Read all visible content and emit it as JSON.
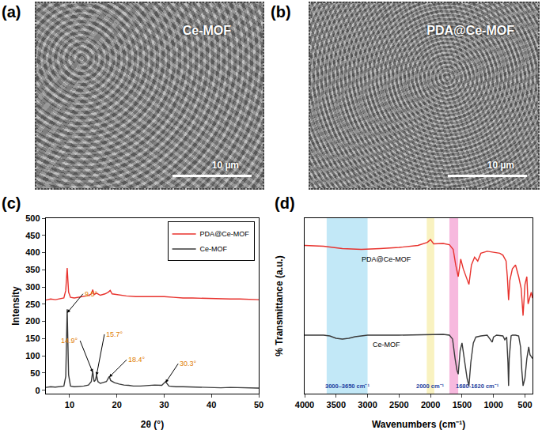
{
  "images": [
    {
      "panel_label": "(a)",
      "label": "Ce-MOF",
      "scale_bar": "10 µm"
    },
    {
      "panel_label": "(b)",
      "label": "PDA@Ce-MOF",
      "scale_bar": "10 µm"
    }
  ],
  "chart_data": [
    {
      "type": "line",
      "panel_label": "(c)",
      "x_label": "2θ (°)",
      "y_label": "Intensity",
      "xlim": [
        5,
        50
      ],
      "xticks": [
        10,
        20,
        30,
        40,
        50
      ],
      "ylim": [
        -10,
        500
      ],
      "yticks": [
        0,
        50,
        100,
        150,
        200,
        250,
        300,
        350,
        400,
        450,
        500
      ],
      "grid": false,
      "legend": "upper right",
      "series": [
        {
          "name": "PDA@Ce-MOF",
          "color": "#e8322d",
          "x": [
            5,
            6,
            7,
            8,
            8.8,
            9.2,
            9.5,
            9.8,
            10.2,
            11,
            12,
            13,
            14,
            14.6,
            14.9,
            15.2,
            15.7,
            16.5,
            17.5,
            18.2,
            18.6,
            19,
            20,
            21,
            22,
            24,
            26,
            28,
            30,
            32,
            34,
            36,
            38,
            40,
            42,
            44,
            46,
            48,
            50
          ],
          "values": [
            262,
            265,
            263,
            266,
            268,
            290,
            355,
            285,
            270,
            268,
            270,
            272,
            275,
            280,
            292,
            278,
            282,
            276,
            280,
            285,
            290,
            280,
            278,
            276,
            274,
            272,
            272,
            271,
            272,
            270,
            268,
            268,
            267,
            266,
            266,
            265,
            265,
            264,
            263
          ]
        },
        {
          "name": "Ce-MOF",
          "color": "#3a3a3a",
          "x": [
            5,
            6,
            7,
            8,
            8.8,
            9.2,
            9.5,
            9.8,
            10.2,
            11,
            12,
            13,
            14,
            14.6,
            14.9,
            15.2,
            15.5,
            15.7,
            16.0,
            16.5,
            17,
            17.8,
            18.2,
            18.4,
            18.7,
            19.5,
            20.5,
            21.5,
            22.5,
            23.5,
            25,
            26.5,
            28,
            29.5,
            30.3,
            31,
            32.5,
            34,
            36,
            38,
            40,
            42,
            44,
            46,
            48,
            50
          ],
          "values": [
            8,
            10,
            9,
            10,
            12,
            40,
            235,
            45,
            12,
            10,
            11,
            12,
            15,
            25,
            55,
            25,
            30,
            45,
            25,
            20,
            22,
            25,
            35,
            40,
            28,
            22,
            18,
            15,
            14,
            12,
            12,
            14,
            15,
            14,
            25,
            12,
            10,
            10,
            9,
            8,
            8,
            7,
            8,
            7,
            7,
            6
          ]
        }
      ],
      "annotations": [
        {
          "x": 9.5,
          "y": 225,
          "text": "9.5°"
        },
        {
          "x": 14.9,
          "y": 52,
          "text": "14.9°"
        },
        {
          "x": 15.7,
          "y": 43,
          "text": "15.7°"
        },
        {
          "x": 18.4,
          "y": 38,
          "text": "18.4°"
        },
        {
          "x": 30.3,
          "y": 22,
          "text": "30.3°"
        }
      ]
    },
    {
      "type": "line",
      "panel_label": "(d)",
      "x_label": "Wavenumbers (cm⁻¹)",
      "y_label": "% Transmittance (a.u.)",
      "xlim": [
        4000,
        380
      ],
      "xticks": [
        4000,
        3500,
        3000,
        2500,
        2000,
        1500,
        1000,
        500
      ],
      "ylim": [
        0,
        450
      ],
      "tick_labels": "x",
      "grid": false,
      "series": [
        {
          "name": "PDA@Ce-MOF",
          "color": "#e8322d",
          "x": [
            4000,
            3700,
            3400,
            3100,
            2800,
            2500,
            2200,
            2050,
            2000,
            1950,
            1800,
            1700,
            1640,
            1600,
            1560,
            1520,
            1480,
            1430,
            1390,
            1350,
            1300,
            1250,
            1200,
            1100,
            1000,
            900,
            850,
            800,
            780,
            760,
            740,
            700,
            650,
            600,
            560,
            530,
            500,
            470,
            450,
            420,
            400,
            380
          ],
          "values": [
            380,
            378,
            372,
            370,
            372,
            375,
            380,
            388,
            395,
            384,
            385,
            382,
            370,
            330,
            300,
            345,
            320,
            300,
            280,
            330,
            350,
            340,
            360,
            365,
            362,
            360,
            355,
            340,
            300,
            240,
            290,
            320,
            330,
            300,
            270,
            200,
            280,
            300,
            230,
            250,
            260,
            245
          ]
        },
        {
          "name": "Ce-MOF",
          "color": "#3a3a3a",
          "x": [
            4000,
            3700,
            3600,
            3500,
            3400,
            3300,
            3200,
            3000,
            2500,
            2000,
            1800,
            1700,
            1650,
            1610,
            1580,
            1560,
            1530,
            1500,
            1450,
            1420,
            1390,
            1360,
            1320,
            1280,
            1200,
            1100,
            1020,
            1000,
            950,
            850,
            820,
            790,
            770,
            760,
            750,
            720,
            700,
            650,
            600,
            570,
            550,
            530,
            500,
            470,
            440,
            420,
            400,
            380
          ],
          "values": [
            150,
            150,
            148,
            142,
            140,
            142,
            146,
            150,
            150,
            152,
            152,
            150,
            140,
            90,
            60,
            50,
            110,
            130,
            70,
            40,
            20,
            80,
            130,
            145,
            148,
            150,
            132,
            145,
            150,
            148,
            138,
            145,
            80,
            20,
            90,
            148,
            150,
            150,
            148,
            120,
            60,
            20,
            40,
            90,
            120,
            100,
            95,
            90
          ]
        }
      ],
      "bands": [
        {
          "x0": 3650,
          "x1": 3000,
          "label": "3000–3650 cm⁻¹",
          "color": "#b3e2f5"
        },
        {
          "x0": 2060,
          "x1": 1940,
          "label": "2000 cm⁻¹",
          "color": "#f7efb0"
        },
        {
          "x0": 1700,
          "x1": 1560,
          "label": "1680-1620 cm⁻¹",
          "color": "#f5a8d6"
        }
      ],
      "annotations": [
        {
          "x": 2700,
          "y": 345,
          "text": "PDA@Ce-MOF"
        },
        {
          "x": 2700,
          "y": 125,
          "text": "Ce-MOF"
        }
      ]
    }
  ]
}
